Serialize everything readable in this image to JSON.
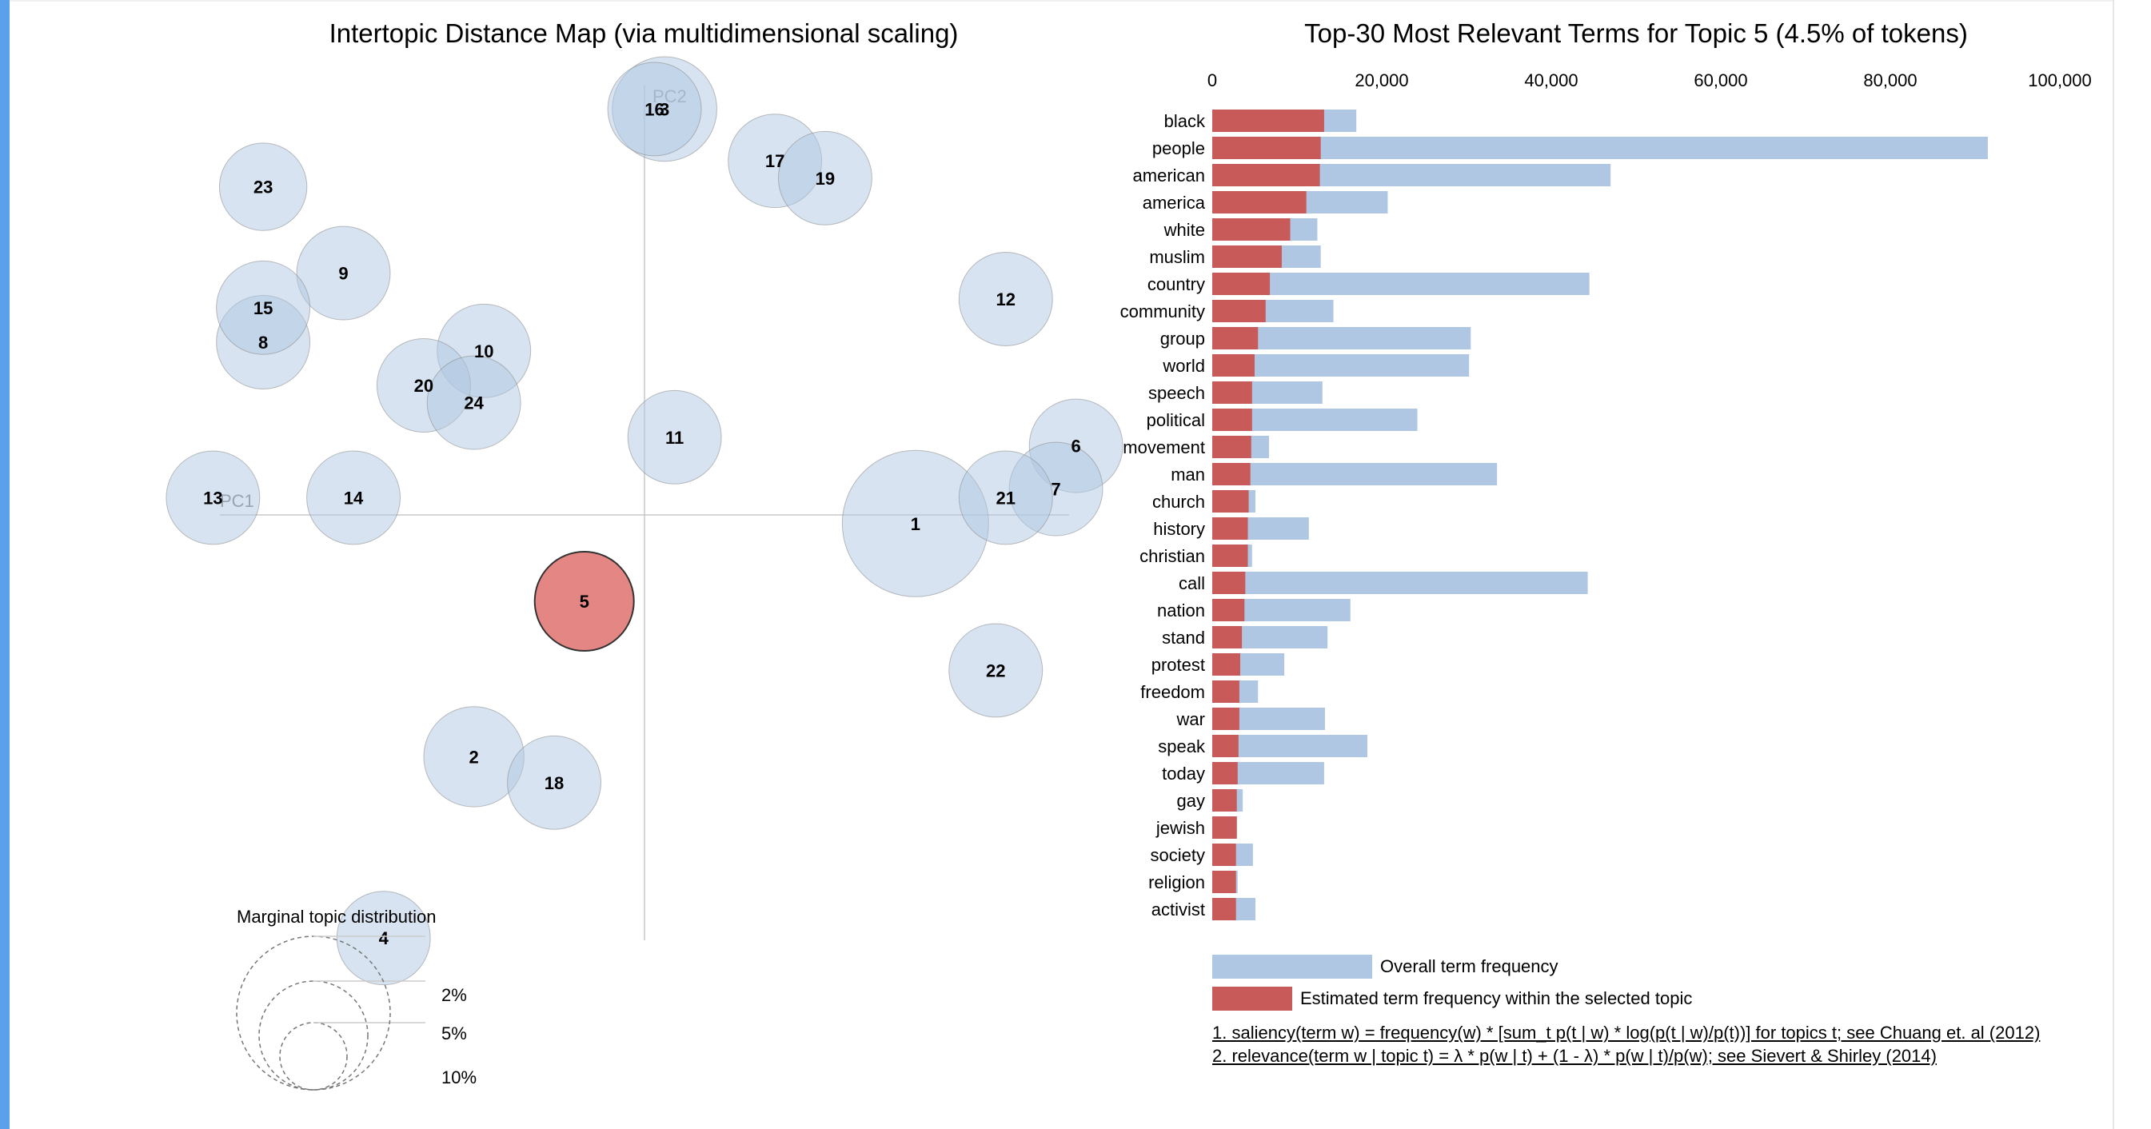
{
  "chart_data": [
    {
      "type": "scatter",
      "title": "Intertopic Distance Map (via multidimensional scaling)",
      "xlabel": "PC1",
      "ylabel": "PC2",
      "selected_topic": "5",
      "topics": [
        {
          "label": "1",
          "x": 0.27,
          "y": -0.01,
          "size": 0.098
        },
        {
          "label": "2",
          "x": -0.17,
          "y": -0.28,
          "size": 0.046
        },
        {
          "label": "3",
          "x": 0.02,
          "y": 0.47,
          "size": 0.05
        },
        {
          "label": "4",
          "x": -0.26,
          "y": -0.49,
          "size": 0.04
        },
        {
          "label": "5",
          "x": -0.06,
          "y": -0.1,
          "size": 0.045,
          "selected": true
        },
        {
          "label": "6",
          "x": 0.43,
          "y": 0.08,
          "size": 0.04
        },
        {
          "label": "7",
          "x": 0.41,
          "y": 0.03,
          "size": 0.04
        },
        {
          "label": "8",
          "x": -0.38,
          "y": 0.2,
          "size": 0.04
        },
        {
          "label": "9",
          "x": -0.3,
          "y": 0.28,
          "size": 0.04
        },
        {
          "label": "10",
          "x": -0.16,
          "y": 0.19,
          "size": 0.04
        },
        {
          "label": "11",
          "x": 0.03,
          "y": 0.09,
          "size": 0.04
        },
        {
          "label": "12",
          "x": 0.36,
          "y": 0.25,
          "size": 0.04
        },
        {
          "label": "13",
          "x": -0.43,
          "y": 0.02,
          "size": 0.04
        },
        {
          "label": "14",
          "x": -0.29,
          "y": 0.02,
          "size": 0.04
        },
        {
          "label": "15",
          "x": -0.38,
          "y": 0.24,
          "size": 0.04
        },
        {
          "label": "16",
          "x": 0.01,
          "y": 0.47,
          "size": 0.04
        },
        {
          "label": "17",
          "x": 0.13,
          "y": 0.41,
          "size": 0.04
        },
        {
          "label": "18",
          "x": -0.09,
          "y": -0.31,
          "size": 0.04
        },
        {
          "label": "19",
          "x": 0.18,
          "y": 0.39,
          "size": 0.04
        },
        {
          "label": "20",
          "x": -0.22,
          "y": 0.15,
          "size": 0.04
        },
        {
          "label": "21",
          "x": 0.36,
          "y": 0.02,
          "size": 0.04
        },
        {
          "label": "22",
          "x": 0.35,
          "y": -0.18,
          "size": 0.04
        },
        {
          "label": "23",
          "x": -0.38,
          "y": 0.38,
          "size": 0.035
        },
        {
          "label": "24",
          "x": -0.17,
          "y": 0.13,
          "size": 0.04
        }
      ],
      "legend": {
        "title": "Marginal topic distribution",
        "entries": [
          "2%",
          "5%",
          "10%"
        ]
      }
    },
    {
      "type": "bar",
      "orientation": "horizontal",
      "title": "Top-30 Most Relevant Terms for Topic 5 (4.5% of tokens)",
      "xlim": [
        0,
        100000
      ],
      "xticks": [
        "0",
        "20,000",
        "40,000",
        "60,000",
        "80,000",
        "100,000"
      ],
      "categories": [
        "black",
        "people",
        "american",
        "america",
        "white",
        "muslim",
        "country",
        "community",
        "group",
        "world",
        "speech",
        "political",
        "movement",
        "man",
        "church",
        "history",
        "christian",
        "call",
        "nation",
        "stand",
        "protest",
        "freedom",
        "war",
        "speak",
        "today",
        "gay",
        "jewish",
        "society",
        "religion",
        "activist"
      ],
      "series": [
        {
          "name": "Overall term frequency",
          "color": "#afc7e2",
          "values": [
            17000,
            91500,
            47000,
            20700,
            12400,
            12800,
            44500,
            14300,
            30500,
            30300,
            13000,
            24200,
            6700,
            33600,
            5100,
            11400,
            4700,
            44300,
            16300,
            13600,
            8500,
            5400,
            13300,
            18300,
            13200,
            3600,
            2900,
            4800,
            3000,
            5100
          ]
        },
        {
          "name": "Estimated term frequency within the selected topic",
          "color": "#c85a5a",
          "values": [
            13200,
            12800,
            12700,
            11100,
            9200,
            8200,
            6800,
            6300,
            5400,
            5000,
            4700,
            4700,
            4600,
            4500,
            4300,
            4200,
            4200,
            3900,
            3800,
            3500,
            3300,
            3200,
            3200,
            3100,
            3000,
            2900,
            2900,
            2800,
            2800,
            2800
          ]
        }
      ]
    }
  ],
  "footnotes": {
    "f1": "1. saliency(term w) = frequency(w) * [sum_t p(t | w) * log(p(t | w)/p(t))] for topics t; see Chuang et. al (2012)",
    "f2": "2. relevance(term w | topic t) = λ * p(w | t) + (1 - λ) * p(w | t)/p(w); see Sievert & Shirley (2014)"
  },
  "colors": {
    "default_circle": "#afc7e2",
    "selected_circle": "#d9534f",
    "overall_bar": "#afc7e2",
    "topic_bar": "#c85a5a"
  }
}
